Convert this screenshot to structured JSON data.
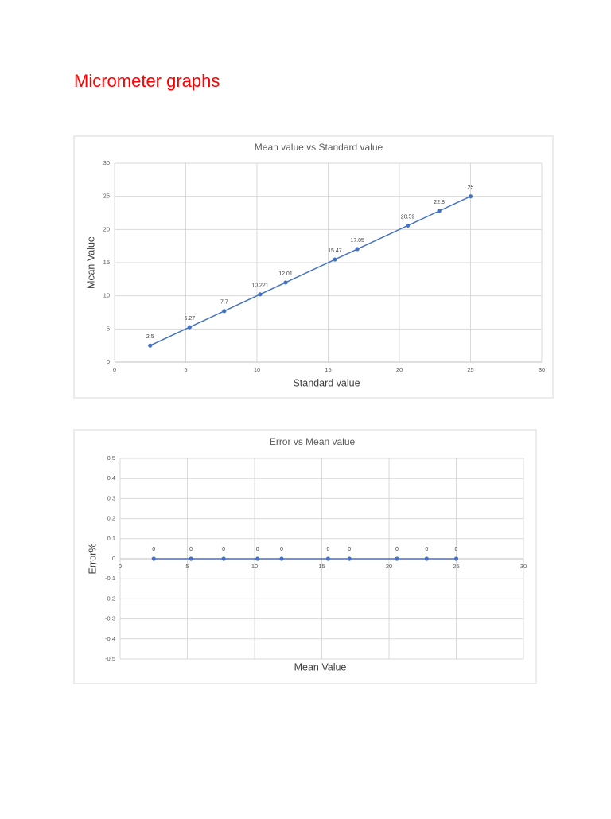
{
  "heading": "Micrometer graphs",
  "chart_data": [
    {
      "type": "line",
      "title": "Mean value vs Standard value",
      "xlabel": "Standard value",
      "ylabel": "Mean Value",
      "x": [
        2.5,
        5.27,
        7.7,
        10.221,
        12.01,
        15.47,
        17.05,
        20.59,
        22.8,
        25
      ],
      "values": [
        2.5,
        5.27,
        7.7,
        10.221,
        12.01,
        15.47,
        17.05,
        20.59,
        22.8,
        25
      ],
      "color": "#4472c4",
      "markers": true,
      "data_labels": true,
      "xlim": [
        0,
        30
      ],
      "xticks": [
        0,
        5,
        10,
        15,
        20,
        25,
        30
      ],
      "ylim": [
        0,
        30
      ],
      "yticks": [
        0,
        5,
        10,
        15,
        20,
        25,
        30
      ],
      "grid": true
    },
    {
      "type": "line",
      "title": "Error vs Mean value",
      "xlabel": "Mean Value",
      "ylabel": "Error%",
      "x": [
        2.5,
        5.27,
        7.7,
        10.221,
        12.01,
        15.47,
        17.05,
        20.59,
        22.8,
        25
      ],
      "values": [
        0,
        0,
        0,
        0,
        0,
        0,
        0,
        0,
        0,
        0
      ],
      "color": "#4472c4",
      "markers": true,
      "data_labels": true,
      "xlim": [
        0,
        30
      ],
      "xticks": [
        0,
        5,
        10,
        15,
        20,
        25,
        30
      ],
      "ylim": [
        -0.5,
        0.5
      ],
      "yticks": [
        -0.5,
        -0.4,
        -0.3,
        -0.2,
        -0.1,
        0,
        0.1,
        0.2,
        0.3,
        0.4,
        0.5
      ],
      "grid": true
    }
  ]
}
